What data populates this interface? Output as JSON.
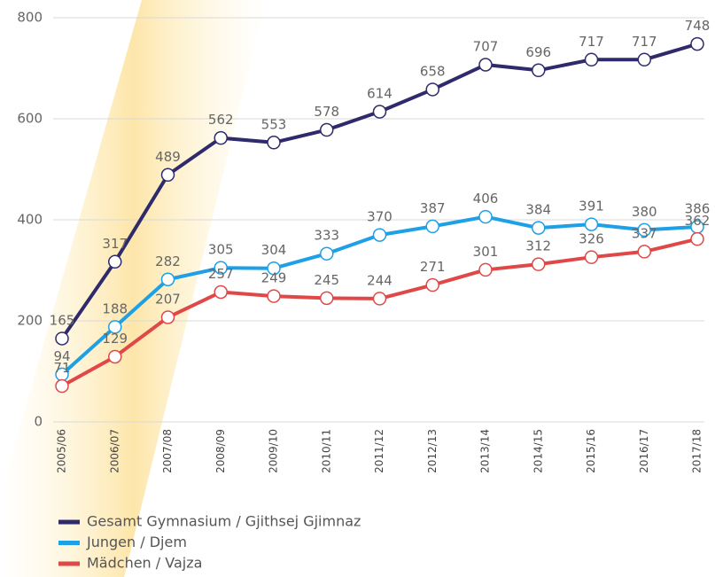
{
  "chart_data": {
    "type": "line",
    "categories": [
      "2005/06",
      "2006/07",
      "2007/08",
      "2008/09",
      "2009/10",
      "2010/11",
      "2011/12",
      "2012/13",
      "2013/14",
      "2014/15",
      "2015/16",
      "2016/17",
      "2017/18"
    ],
    "series": [
      {
        "name": "Gesamt Gymnasium / Gjithsej Gjimnaz",
        "color": "#2e2a6b",
        "values": [
          165,
          317,
          489,
          562,
          553,
          578,
          614,
          658,
          707,
          696,
          717,
          717,
          748
        ]
      },
      {
        "name": "Jungen / Djem",
        "color": "#1ea0e6",
        "values": [
          94,
          188,
          282,
          305,
          304,
          333,
          370,
          387,
          406,
          384,
          391,
          380,
          386
        ]
      },
      {
        "name": "Mädchen / Vajza",
        "color": "#e04848",
        "values": [
          71,
          129,
          207,
          257,
          249,
          245,
          244,
          271,
          301,
          312,
          326,
          337,
          362
        ]
      }
    ],
    "ylim": [
      0,
      800
    ],
    "yticks": [
      0,
      200,
      400,
      600,
      800
    ],
    "grid": true,
    "legend": "bottom"
  }
}
